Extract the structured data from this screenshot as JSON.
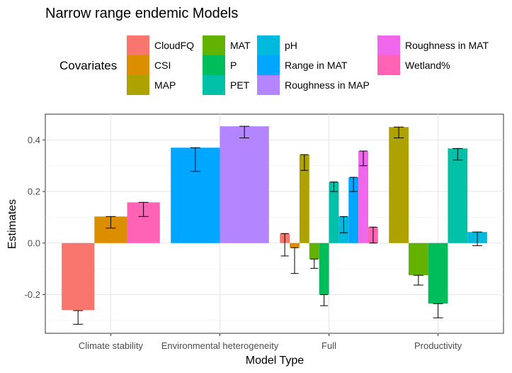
{
  "chart_data": {
    "type": "bar",
    "title": "Narrow range endemic Models",
    "xlabel": "Model Type",
    "ylabel": "Estimates",
    "ylim": [
      -0.35,
      0.5
    ],
    "yticks": [
      -0.2,
      0.0,
      0.2,
      0.4
    ],
    "ytick_labels": [
      "-0.2",
      "0.0",
      "0.2",
      "0.4"
    ],
    "grid": true,
    "legend_title": "Covariates",
    "legend_position": "top",
    "categories": [
      "Climate stability",
      "Environmental heterogeneity",
      "Full",
      "Productivity"
    ],
    "covariates": [
      {
        "name": "CloudFQ",
        "color": "#F8766D"
      },
      {
        "name": "CSI",
        "color": "#DB8E00"
      },
      {
        "name": "MAP",
        "color": "#AEA200"
      },
      {
        "name": "MAT",
        "color": "#64B200"
      },
      {
        "name": "P",
        "color": "#00BD5C"
      },
      {
        "name": "PET",
        "color": "#00C1A7"
      },
      {
        "name": "pH",
        "color": "#00BADE"
      },
      {
        "name": "Range in MAT",
        "color": "#00A6FF"
      },
      {
        "name": "Roughness in MAP",
        "color": "#B385FF"
      },
      {
        "name": "Roughness in MAT",
        "color": "#EF67EB"
      },
      {
        "name": "Wetland%",
        "color": "#FF63B6"
      }
    ],
    "groups": [
      {
        "category": "Climate stability",
        "bars": [
          {
            "covariate": "CloudFQ",
            "value": -0.26,
            "ci": [
              -0.315,
              -0.262
            ]
          },
          {
            "covariate": "CSI",
            "value": 0.103,
            "ci": [
              0.058,
              0.103
            ]
          },
          {
            "covariate": "Wetland%",
            "value": 0.158,
            "ci": [
              0.103,
              0.158
            ]
          }
        ]
      },
      {
        "category": "Environmental heterogeneity",
        "bars": [
          {
            "covariate": "Range in MAT",
            "value": 0.37,
            "ci": [
              0.278,
              0.37
            ]
          },
          {
            "covariate": "Roughness in MAP",
            "value": 0.453,
            "ci": [
              0.408,
              0.453
            ]
          }
        ]
      },
      {
        "category": "Full",
        "bars": [
          {
            "covariate": "CloudFQ",
            "value": 0.037,
            "ci": [
              -0.05,
              0.037
            ]
          },
          {
            "covariate": "CSI",
            "value": -0.018,
            "ci": [
              -0.118,
              -0.018
            ]
          },
          {
            "covariate": "MAP",
            "value": 0.343,
            "ci": [
              0.282,
              0.343
            ]
          },
          {
            "covariate": "MAT",
            "value": -0.062,
            "ci": [
              -0.098,
              -0.062
            ]
          },
          {
            "covariate": "P",
            "value": -0.2,
            "ci": [
              -0.243,
              -0.2
            ]
          },
          {
            "covariate": "PET",
            "value": 0.237,
            "ci": [
              0.2,
              0.237
            ]
          },
          {
            "covariate": "pH",
            "value": 0.103,
            "ci": [
              0.04,
              0.103
            ]
          },
          {
            "covariate": "Range in MAT",
            "value": 0.255,
            "ci": [
              0.2,
              0.255
            ]
          },
          {
            "covariate": "Roughness in MAT",
            "value": 0.357,
            "ci": [
              0.3,
              0.357
            ]
          },
          {
            "covariate": "Wetland%",
            "value": 0.062,
            "ci": [
              0.0,
              0.062
            ]
          }
        ]
      },
      {
        "category": "Productivity",
        "bars": [
          {
            "covariate": "MAP",
            "value": 0.45,
            "ci": [
              0.408,
              0.45
            ]
          },
          {
            "covariate": "MAT",
            "value": -0.125,
            "ci": [
              -0.163,
              -0.125
            ]
          },
          {
            "covariate": "P",
            "value": -0.235,
            "ci": [
              -0.29,
              -0.235
            ]
          },
          {
            "covariate": "PET",
            "value": 0.367,
            "ci": [
              0.322,
              0.367
            ]
          },
          {
            "covariate": "pH",
            "value": 0.043,
            "ci": [
              -0.01,
              0.043
            ]
          }
        ]
      }
    ]
  }
}
